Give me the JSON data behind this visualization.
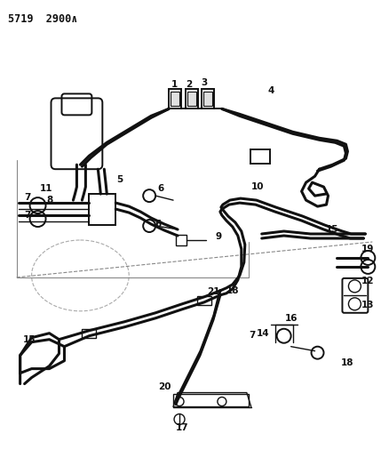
{
  "title": "5719  2900∧",
  "bg": "#ffffff",
  "lc": "#111111",
  "fig_w": 4.29,
  "fig_h": 5.33,
  "dpi": 100
}
